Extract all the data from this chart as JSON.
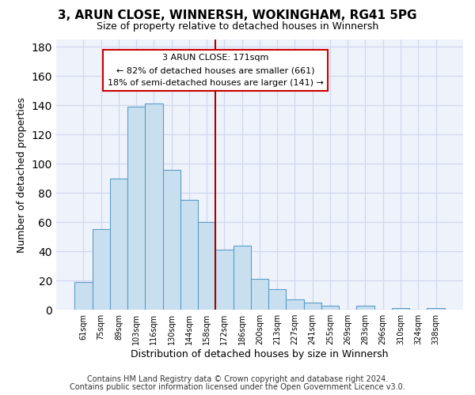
{
  "title": "3, ARUN CLOSE, WINNERSH, WOKINGHAM, RG41 5PG",
  "subtitle": "Size of property relative to detached houses in Winnersh",
  "xlabel": "Distribution of detached houses by size in Winnersh",
  "ylabel": "Number of detached properties",
  "bar_labels": [
    "61sqm",
    "75sqm",
    "89sqm",
    "103sqm",
    "116sqm",
    "130sqm",
    "144sqm",
    "158sqm",
    "172sqm",
    "186sqm",
    "200sqm",
    "213sqm",
    "227sqm",
    "241sqm",
    "255sqm",
    "269sqm",
    "283sqm",
    "296sqm",
    "310sqm",
    "324sqm",
    "338sqm"
  ],
  "bar_values": [
    19,
    55,
    90,
    139,
    141,
    96,
    75,
    60,
    41,
    44,
    21,
    14,
    7,
    5,
    3,
    0,
    3,
    0,
    1,
    0,
    1
  ],
  "bar_color": "#c8dff0",
  "bar_edge_color": "#5b9dc8",
  "vline_index": 8,
  "vline_color": "#aa0000",
  "annotation_title": "3 ARUN CLOSE: 171sqm",
  "annotation_line1": "← 82% of detached houses are smaller (661)",
  "annotation_line2": "18% of semi-detached houses are larger (141) →",
  "annotation_box_color": "#ffffff",
  "annotation_box_edge": "#cc0000",
  "ylim": [
    0,
    185
  ],
  "yticks": [
    0,
    20,
    40,
    60,
    80,
    100,
    120,
    140,
    160,
    180
  ],
  "footer1": "Contains HM Land Registry data © Crown copyright and database right 2024.",
  "footer2": "Contains public sector information licensed under the Open Government Licence v3.0.",
  "bg_color": "#ffffff",
  "plot_bg_color": "#eef2fb",
  "grid_color": "#d0d8ee",
  "title_fontsize": 11,
  "subtitle_fontsize": 9,
  "footer_fontsize": 7
}
